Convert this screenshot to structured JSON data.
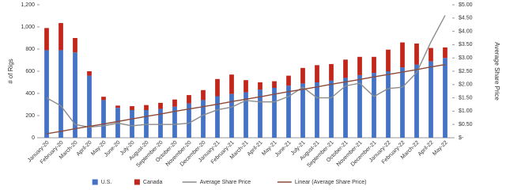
{
  "chart_data": {
    "type": "combo",
    "y_label": "# of Rigs",
    "y2_label": "Average Share Price",
    "categories": [
      "January-20",
      "February-20",
      "March-20",
      "April-20",
      "May-20",
      "June-20",
      "July-20",
      "August-20",
      "September-20",
      "October-20",
      "November-20",
      "December-20",
      "January-21",
      "February-21",
      "March-21",
      "April-21",
      "May-21",
      "June-21",
      "July-21",
      "August-21",
      "September-21",
      "October-21",
      "November-21",
      "December-21",
      "January-22",
      "February-22",
      "March-22",
      "April-22",
      "May-22"
    ],
    "series": [
      {
        "name": "U.S.",
        "type": "bar",
        "stacked": true,
        "color": "#4472c4",
        "values": [
          790,
          790,
          770,
          560,
          340,
          270,
          250,
          250,
          260,
          280,
          310,
          340,
          375,
          395,
          410,
          435,
          450,
          470,
          490,
          500,
          515,
          540,
          565,
          585,
          600,
          635,
          660,
          690,
          720
        ]
      },
      {
        "name": "Canada",
        "type": "bar",
        "stacked": true,
        "color": "#c0261c",
        "values": [
          200,
          245,
          130,
          40,
          30,
          20,
          35,
          45,
          55,
          65,
          75,
          90,
          155,
          175,
          110,
          65,
          60,
          90,
          140,
          155,
          150,
          165,
          165,
          145,
          195,
          225,
          190,
          120,
          95
        ]
      },
      {
        "name": "Average Share Price",
        "type": "line",
        "axis": "y2",
        "color": "#8c8c8c",
        "values": [
          1.5,
          1.2,
          0.5,
          0.4,
          0.45,
          0.55,
          0.45,
          0.5,
          0.5,
          0.5,
          0.55,
          0.85,
          1.05,
          1.15,
          1.4,
          1.35,
          1.35,
          1.55,
          1.9,
          1.5,
          1.5,
          1.95,
          2.05,
          1.55,
          1.85,
          1.9,
          2.45,
          3.6,
          4.6
        ]
      },
      {
        "name": "Linear (Average Share Price)",
        "type": "line",
        "axis": "y2",
        "color": "#8b4a3a",
        "values": [
          0.15,
          0.24,
          0.34,
          0.43,
          0.52,
          0.61,
          0.71,
          0.8,
          0.89,
          0.99,
          1.08,
          1.17,
          1.26,
          1.36,
          1.45,
          1.54,
          1.64,
          1.73,
          1.82,
          1.91,
          2.01,
          2.1,
          2.19,
          2.29,
          2.38,
          2.47,
          2.56,
          2.66,
          2.75
        ]
      }
    ],
    "ylim": [
      0,
      1200
    ],
    "yticks": [
      0,
      200,
      400,
      600,
      800,
      {
        "value": 1000,
        "label": "1,000"
      },
      {
        "value": 1200,
        "label": "1,200"
      }
    ],
    "y2lim": [
      0,
      5
    ],
    "y2ticks": [
      {
        "value": 0,
        "label": "$-"
      },
      {
        "value": 0.5,
        "label": "$0.50"
      },
      {
        "value": 1,
        "label": "$1.00"
      },
      {
        "value": 1.5,
        "label": "$1.50"
      },
      {
        "value": 2,
        "label": "$2.00"
      },
      {
        "value": 2.5,
        "label": "$2.50"
      },
      {
        "value": 3,
        "label": "$3.00"
      },
      {
        "value": 3.5,
        "label": "$3.50"
      },
      {
        "value": 4,
        "label": "$4.00"
      },
      {
        "value": 4.5,
        "label": "$4.50"
      },
      {
        "value": 5,
        "label": "$5.00"
      }
    ],
    "legend": "bottom"
  }
}
